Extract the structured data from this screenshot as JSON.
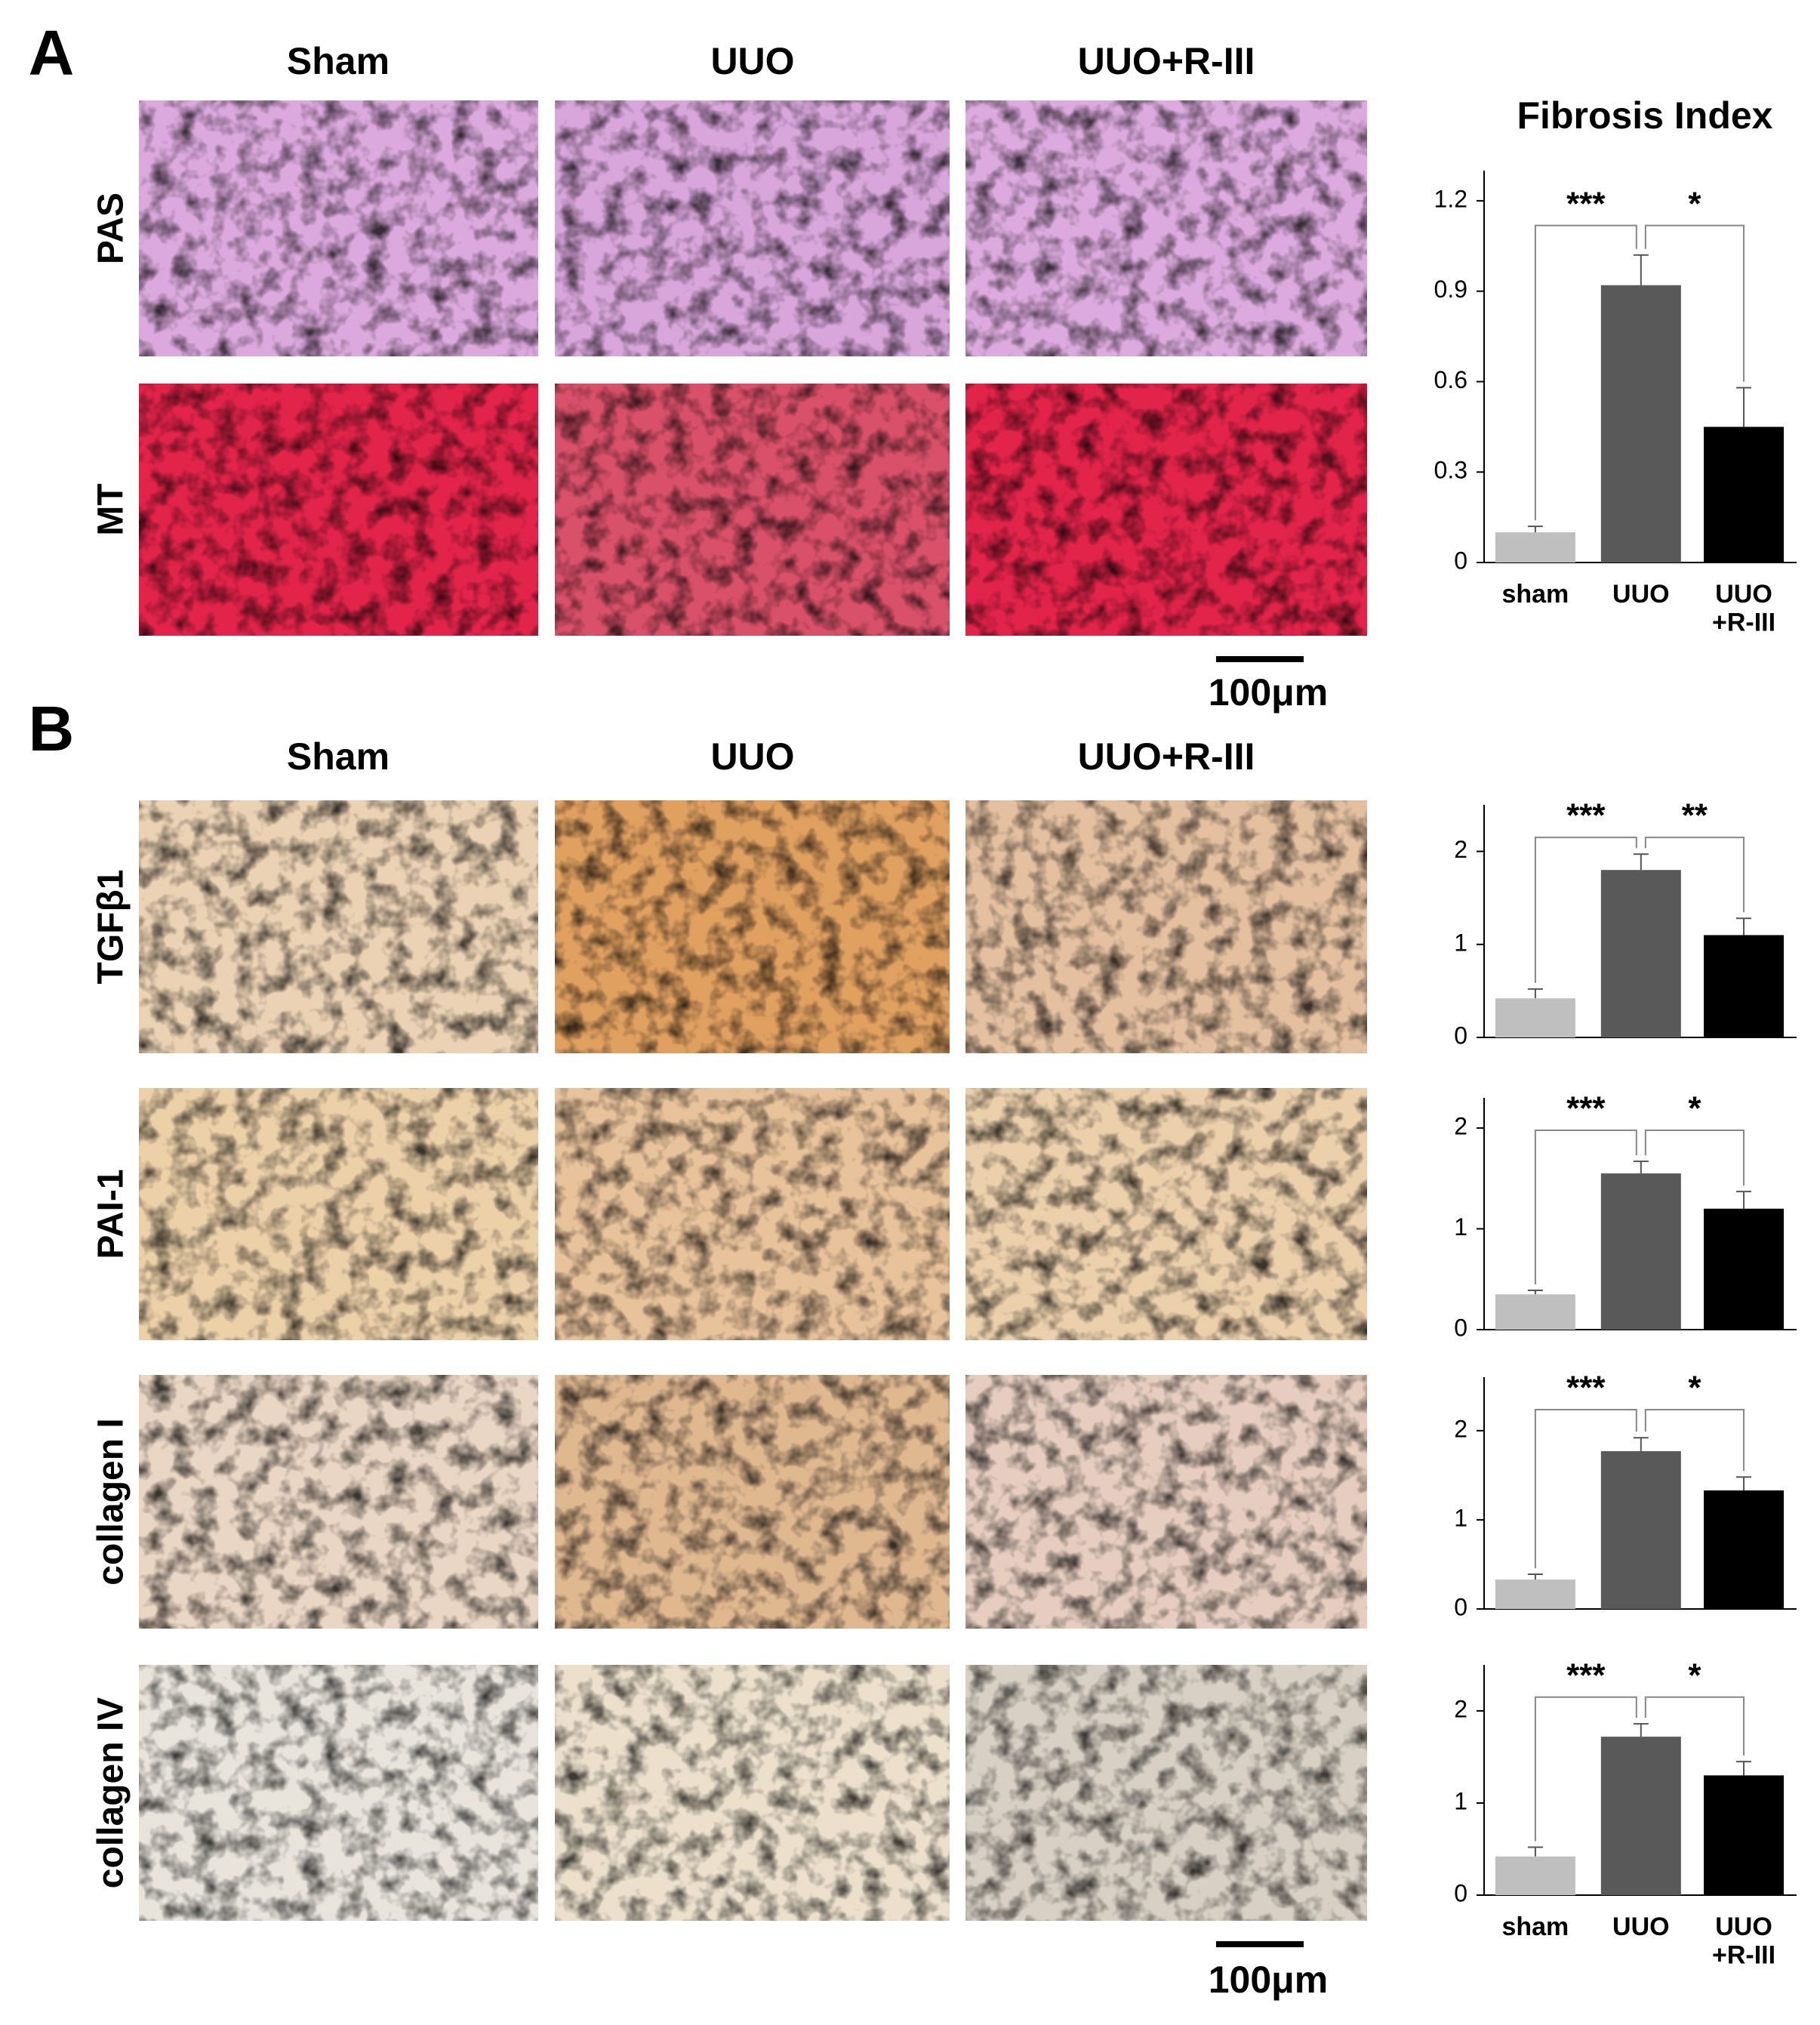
{
  "panels": [
    {
      "label": "A",
      "columns": [
        "Sham",
        "UUO",
        "UUO+R-III"
      ],
      "rows": [
        "PAS",
        "MT"
      ],
      "scale_bar": "100μm"
    },
    {
      "label": "B",
      "columns": [
        "Sham",
        "UUO",
        "UUO+R-III"
      ],
      "rows": [
        "TGFβ1",
        "PAI-1",
        "collagen I",
        "collagen IV"
      ],
      "scale_bar": "100μm"
    }
  ],
  "chart_data": [
    {
      "type": "bar",
      "title": "Fibrosis Index",
      "categories": [
        "sham",
        "UUO",
        "UUO\n+R-III"
      ],
      "values": [
        0.1,
        0.92,
        0.45
      ],
      "errors": [
        0.02,
        0.1,
        0.13
      ],
      "colors": [
        "#bfbfbf",
        "#595959",
        "#000000"
      ],
      "ylim": [
        0,
        1.3
      ],
      "yticks": [
        0,
        0.3,
        0.6,
        0.9,
        1.2
      ],
      "annotations": [
        "***",
        "*"
      ]
    },
    {
      "type": "bar",
      "values": [
        0.42,
        1.8,
        1.1
      ],
      "errors": [
        0.1,
        0.17,
        0.18
      ],
      "colors": [
        "#bfbfbf",
        "#595959",
        "#000000"
      ],
      "ylim": [
        0,
        2.5
      ],
      "yticks": [
        0,
        1,
        2
      ],
      "annotations": [
        "***",
        "**"
      ]
    },
    {
      "type": "bar",
      "values": [
        0.35,
        1.55,
        1.2
      ],
      "errors": [
        0.04,
        0.12,
        0.17
      ],
      "colors": [
        "#bfbfbf",
        "#595959",
        "#000000"
      ],
      "ylim": [
        0,
        2.3
      ],
      "yticks": [
        0,
        1,
        2
      ],
      "annotations": [
        "***",
        "*"
      ]
    },
    {
      "type": "bar",
      "values": [
        0.33,
        1.77,
        1.33
      ],
      "errors": [
        0.06,
        0.15,
        0.15
      ],
      "colors": [
        "#bfbfbf",
        "#595959",
        "#000000"
      ],
      "ylim": [
        0,
        2.6
      ],
      "yticks": [
        0,
        1,
        2
      ],
      "annotations": [
        "***",
        "*"
      ]
    },
    {
      "type": "bar",
      "categories": [
        "sham",
        "UUO",
        "UUO\n+R-III"
      ],
      "values": [
        0.42,
        1.72,
        1.3
      ],
      "errors": [
        0.1,
        0.14,
        0.15
      ],
      "colors": [
        "#bfbfbf",
        "#595959",
        "#000000"
      ],
      "ylim": [
        0,
        2.5
      ],
      "yticks": [
        0,
        1,
        2
      ],
      "annotations": [
        "***",
        "*"
      ]
    }
  ]
}
